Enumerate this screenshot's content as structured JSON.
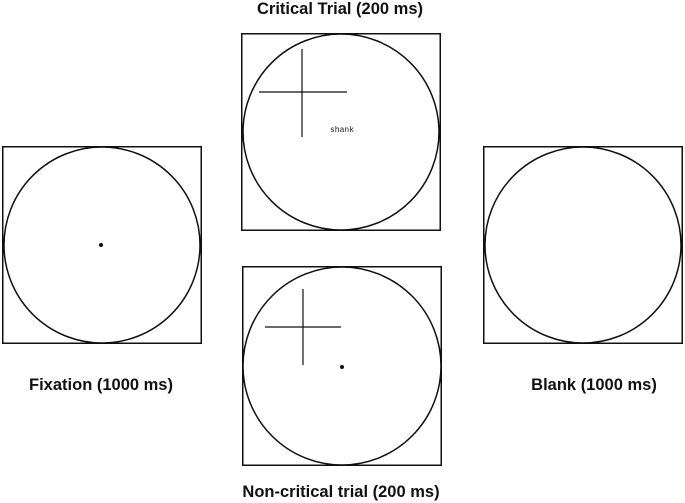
{
  "labels": {
    "critical": "Critical Trial (200 ms)",
    "fixation": "Fixation (1000 ms)",
    "blank": "Blank (1000 ms)",
    "noncritical": "Non-critical trial (200 ms)"
  },
  "critical_word": "shank",
  "colors": {
    "stroke": "#111111",
    "background": "#ffffff"
  }
}
